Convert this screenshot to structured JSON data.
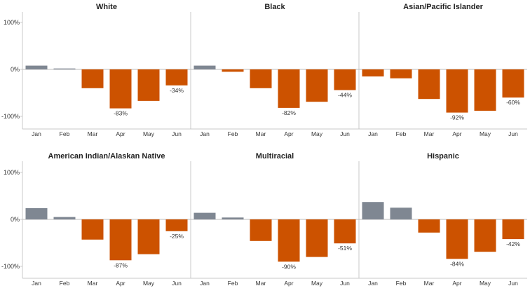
{
  "chart_data": {
    "type": "bar",
    "categories": [
      "Jan",
      "Feb",
      "Mar",
      "Apr",
      "May",
      "Jun"
    ],
    "y_tick_labels": [
      "100%",
      "0%",
      "-100%"
    ],
    "y_ticks": [
      100,
      0,
      -100
    ],
    "ylim": [
      -125,
      107
    ],
    "colors": {
      "positive": "#7f8792",
      "negative": "#cc5200"
    },
    "panels": [
      {
        "title": "White",
        "values": [
          8,
          2,
          -40,
          -83,
          -67,
          -34
        ],
        "labels": [
          "",
          "",
          "",
          "-83%",
          "",
          "-34%"
        ]
      },
      {
        "title": "Black",
        "values": [
          8,
          -5,
          -40,
          -82,
          -69,
          -44
        ],
        "labels": [
          "",
          "",
          "",
          "-82%",
          "",
          "-44%"
        ]
      },
      {
        "title": "Asian/Pacific Islander",
        "values": [
          -15,
          -19,
          -63,
          -92,
          -88,
          -60
        ],
        "labels": [
          "",
          "",
          "",
          "-92%",
          "",
          "-60%"
        ]
      },
      {
        "title": "American Indian/Alaskan Native",
        "values": [
          24,
          5,
          -43,
          -87,
          -74,
          -25
        ],
        "labels": [
          "",
          "",
          "",
          "-87%",
          "",
          "-25%"
        ]
      },
      {
        "title": "Multiracial",
        "values": [
          14,
          4,
          -46,
          -90,
          -80,
          -51
        ],
        "labels": [
          "",
          "",
          "",
          "-90%",
          "",
          "-51%"
        ]
      },
      {
        "title": "Hispanic",
        "values": [
          37,
          25,
          -28,
          -84,
          -69,
          -42
        ],
        "labels": [
          "",
          "",
          "",
          "-84%",
          "",
          "-42%"
        ]
      }
    ]
  }
}
